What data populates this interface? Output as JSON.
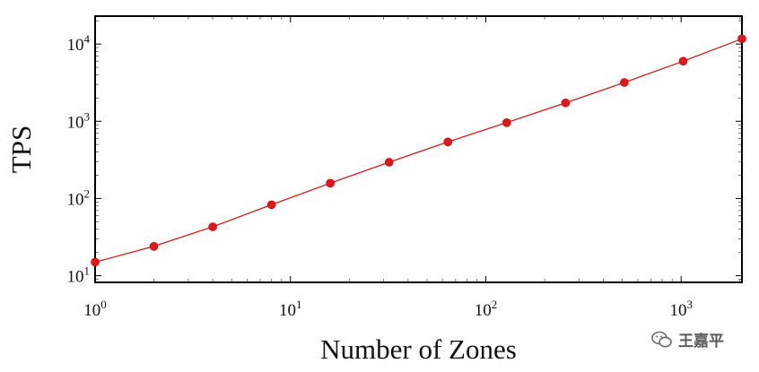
{
  "chart_data": {
    "type": "line",
    "xlabel": "Number of Zones",
    "ylabel": "TPS",
    "x_scale": "log",
    "y_scale": "log",
    "xlim": [
      1,
      2048
    ],
    "ylim": [
      8.2,
      23000
    ],
    "grid": false,
    "line_color": "#d11a1a",
    "marker_color": "#e3161b",
    "x_ticks": [
      {
        "value": 1,
        "base": "10",
        "exp": "0"
      },
      {
        "value": 10,
        "base": "10",
        "exp": "1"
      },
      {
        "value": 100,
        "base": "10",
        "exp": "2"
      },
      {
        "value": 1000,
        "base": "10",
        "exp": "3"
      }
    ],
    "y_ticks": [
      {
        "value": 10,
        "base": "10",
        "exp": "1"
      },
      {
        "value": 100,
        "base": "10",
        "exp": "2"
      },
      {
        "value": 1000,
        "base": "10",
        "exp": "3"
      },
      {
        "value": 10000,
        "base": "10",
        "exp": "4"
      }
    ],
    "series": [
      {
        "x": [
          1,
          2,
          4,
          8,
          16,
          32,
          64,
          128,
          256,
          512,
          1024,
          2048
        ],
        "y": [
          15,
          24,
          43,
          83,
          158,
          295,
          540,
          960,
          1730,
          3180,
          6000,
          11700
        ]
      }
    ]
  },
  "watermark": {
    "icon": "wechat-icon",
    "text": "王嘉平"
  }
}
